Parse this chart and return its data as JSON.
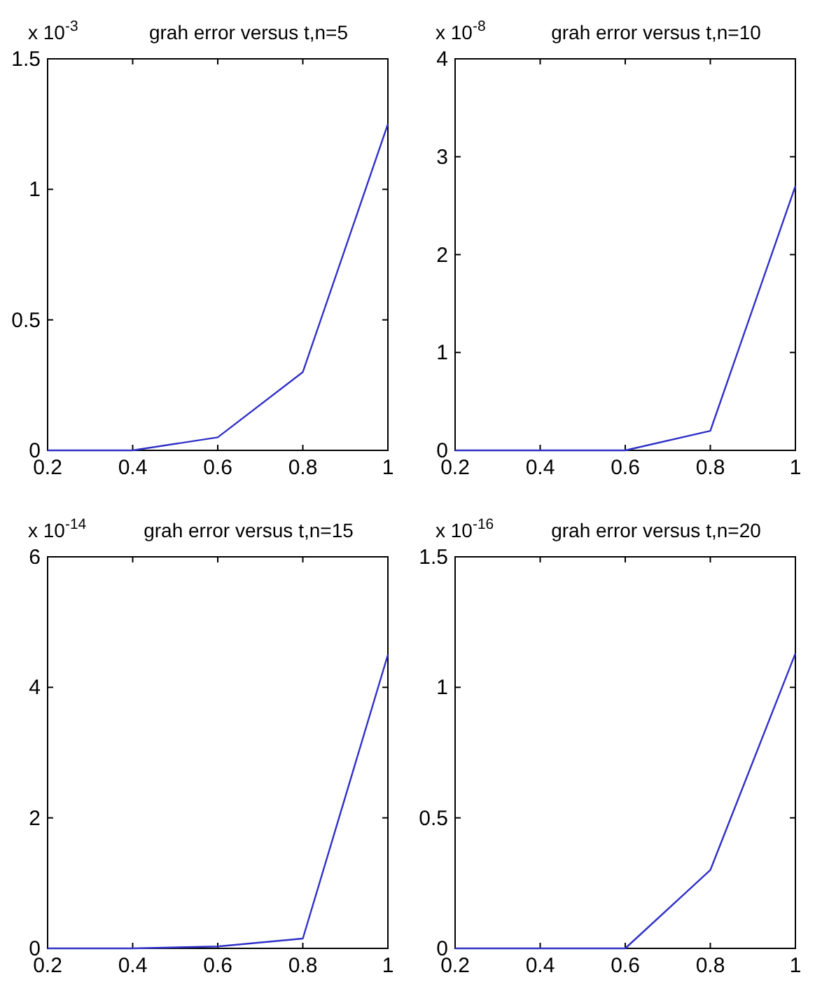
{
  "chart_data": [
    {
      "type": "line",
      "title": "grah error versus t,n=5",
      "annotations": [
        "x 10$^{-3}$"
      ],
      "x": [
        0.2,
        0.4,
        0.6,
        0.8,
        1
      ],
      "series": [
        {
          "color": "#3030c8",
          "values": [
            0,
            0,
            0.05,
            0.3,
            1.25
          ]
        }
      ],
      "xlim": [
        0.2,
        1
      ],
      "xticks": [
        0.2,
        0.4,
        0.6,
        0.8,
        1
      ],
      "ylim": [
        0,
        1.5
      ],
      "yticks": [
        0,
        0.5,
        1,
        1.5
      ],
      "grid": false
    },
    {
      "type": "line",
      "title": "grah error versus t,n=10",
      "annotations": [
        "x 10$^{-8}$"
      ],
      "x": [
        0.2,
        0.4,
        0.6,
        0.8,
        1
      ],
      "series": [
        {
          "color": "#3030c8",
          "values": [
            0,
            0,
            0,
            0.2,
            2.7
          ]
        }
      ],
      "xlim": [
        0.2,
        1
      ],
      "xticks": [
        0.2,
        0.4,
        0.6,
        0.8,
        1
      ],
      "ylim": [
        0,
        4
      ],
      "yticks": [
        0,
        1,
        2,
        3,
        4
      ],
      "grid": false
    },
    {
      "type": "line",
      "title": "grah error versus t,n=15",
      "annotations": [
        "x 10$^{-14}$"
      ],
      "x": [
        0.2,
        0.4,
        0.6,
        0.8,
        1
      ],
      "series": [
        {
          "color": "#3030c8",
          "values": [
            0,
            0,
            0.03,
            0.15,
            4.5
          ]
        }
      ],
      "xlim": [
        0.2,
        1
      ],
      "xticks": [
        0.2,
        0.4,
        0.6,
        0.8,
        1
      ],
      "ylim": [
        0,
        6
      ],
      "yticks": [
        0,
        2,
        4,
        6
      ],
      "grid": false
    },
    {
      "type": "line",
      "title": "grah error versus t,n=20",
      "annotations": [
        "x 10$^{-16}$"
      ],
      "x": [
        0.2,
        0.4,
        0.6,
        0.8,
        1
      ],
      "series": [
        {
          "color": "#3030c8",
          "values": [
            0,
            0,
            0,
            0.3,
            1.13
          ]
        }
      ],
      "xlim": [
        0.2,
        1
      ],
      "xticks": [
        0.2,
        0.4,
        0.6,
        0.8,
        1
      ],
      "ylim": [
        0,
        1.5
      ],
      "yticks": [
        0,
        0.5,
        1,
        1.5
      ],
      "grid": false
    }
  ]
}
